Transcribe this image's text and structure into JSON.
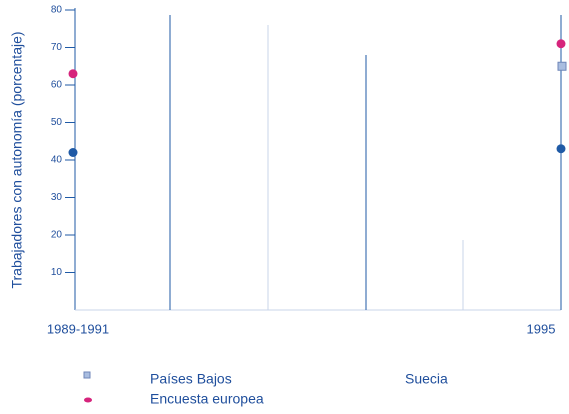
{
  "chart_data": {
    "type": "line",
    "y_label": "Trabajadores con autonomía (porcentaje)",
    "categories": [
      "1989-1991",
      "1995"
    ],
    "series": [
      {
        "name": "Países Bajos",
        "color": "#a9bde0",
        "marker": "square",
        "values": [
          null,
          65
        ]
      },
      {
        "name": "Suecia",
        "color": "#1f5aa6",
        "marker": "circle",
        "values": [
          42,
          43
        ]
      },
      {
        "name": "Encuesta europea",
        "color": "#d6247c",
        "marker": "circle",
        "values": [
          63,
          71
        ]
      }
    ],
    "ylim": [
      0,
      80
    ],
    "yticks": [
      10,
      20,
      30,
      40,
      50,
      60,
      70,
      80
    ]
  }
}
